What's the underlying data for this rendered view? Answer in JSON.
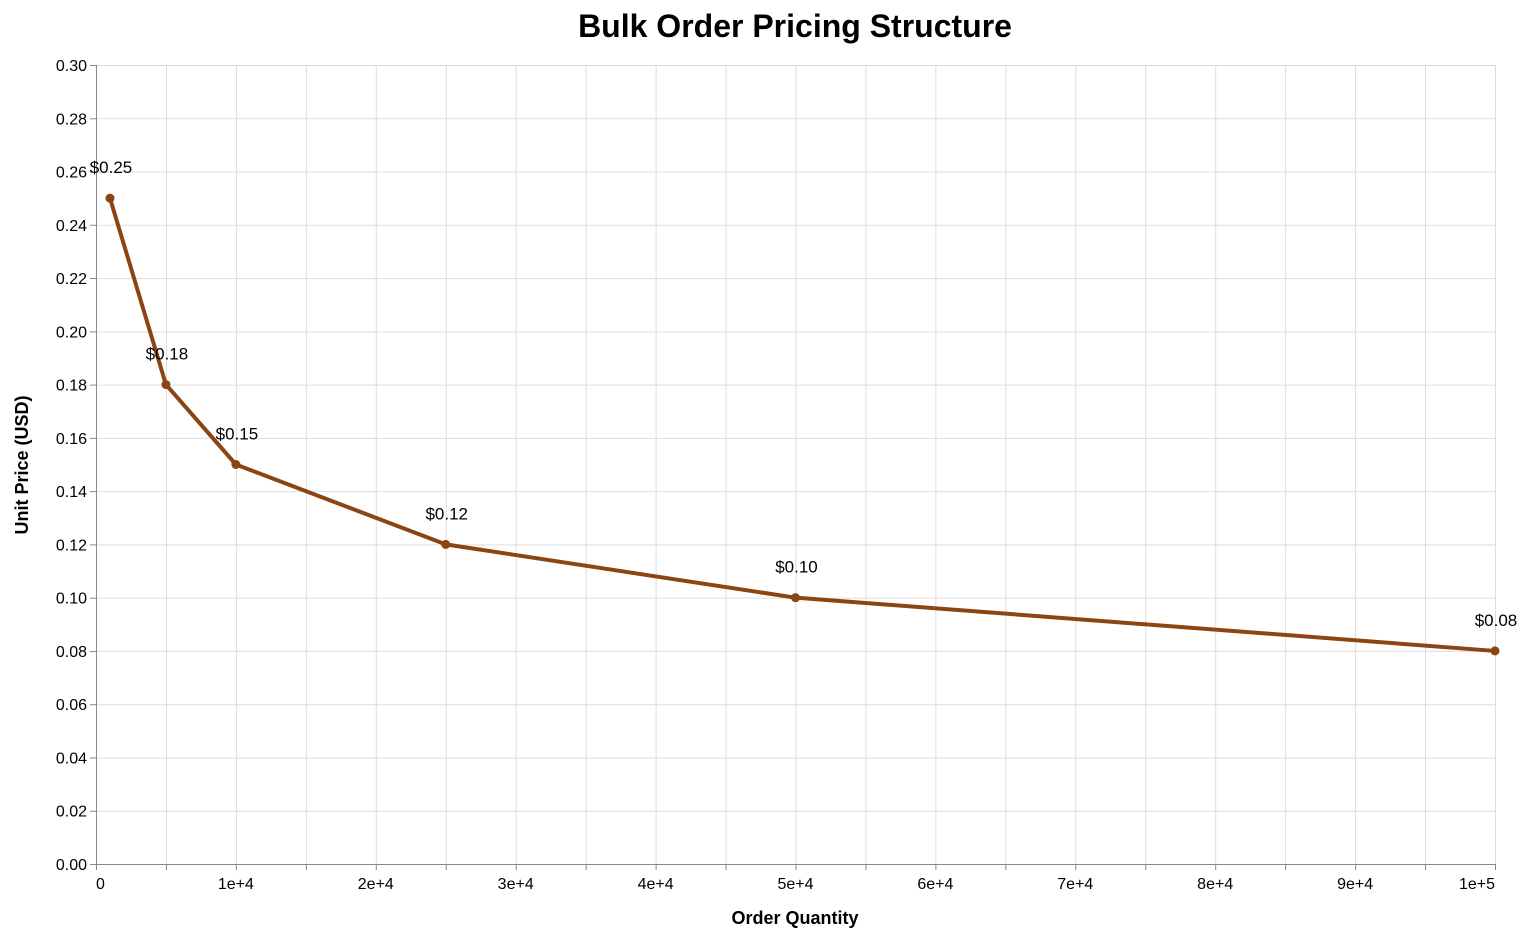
{
  "chart_data": {
    "type": "line",
    "title": "Bulk Order Pricing Structure",
    "xlabel": "Order Quantity",
    "ylabel": "Unit Price (USD)",
    "xlim": [
      0,
      100000
    ],
    "ylim": [
      0,
      0.3
    ],
    "x_ticks": [
      0,
      10000,
      20000,
      30000,
      40000,
      50000,
      60000,
      70000,
      80000,
      90000,
      100000
    ],
    "x_tick_labels": [
      "0",
      "1e+4",
      "2e+4",
      "3e+4",
      "4e+4",
      "5e+4",
      "6e+4",
      "7e+4",
      "8e+4",
      "9e+4",
      "1e+5"
    ],
    "y_ticks": [
      0,
      0.02,
      0.04,
      0.06,
      0.08,
      0.1,
      0.12,
      0.14,
      0.16,
      0.18,
      0.2,
      0.22,
      0.24,
      0.26,
      0.28,
      0.3
    ],
    "y_tick_labels": [
      "0.00",
      "0.02",
      "0.04",
      "0.06",
      "0.08",
      "0.10",
      "0.12",
      "0.14",
      "0.16",
      "0.18",
      "0.20",
      "0.22",
      "0.24",
      "0.26",
      "0.28",
      "0.30"
    ],
    "grid": true,
    "x": [
      1000,
      5000,
      10000,
      25000,
      50000,
      100000
    ],
    "y": [
      0.25,
      0.18,
      0.15,
      0.12,
      0.1,
      0.08
    ],
    "data_labels": [
      "$0.25",
      "$0.18",
      "$0.15",
      "$0.12",
      "$0.10",
      "$0.08"
    ],
    "line_color": "#8B4513"
  }
}
